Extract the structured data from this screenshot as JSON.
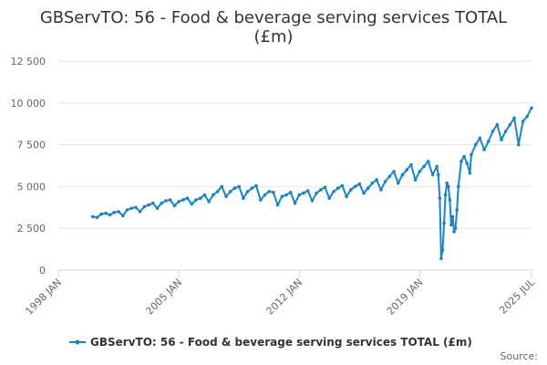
{
  "chart_data": {
    "type": "line",
    "title_line1": "GBServTO: 56 - Food & beverage serving services TOTAL",
    "title_line2": "(£m)",
    "xlabel": "",
    "ylabel": "",
    "ylim": [
      0,
      12500
    ],
    "y_ticks": [
      {
        "value": 0,
        "label": "0"
      },
      {
        "value": 2500,
        "label": "2 500"
      },
      {
        "value": 5000,
        "label": "5 000"
      },
      {
        "value": 7500,
        "label": "7 500"
      },
      {
        "value": 10000,
        "label": "10 000"
      },
      {
        "value": 12500,
        "label": "12 500"
      }
    ],
    "x_range": [
      1998.0,
      2025.5
    ],
    "x_ticks": [
      {
        "value": 1998.0,
        "label": "1998 JAN"
      },
      {
        "value": 2005.0,
        "label": "2005 JAN"
      },
      {
        "value": 2012.0,
        "label": "2012 JAN"
      },
      {
        "value": 2019.0,
        "label": "2019 JAN"
      },
      {
        "value": 2025.5,
        "label": "2025 JUL"
      }
    ],
    "grid": true,
    "series": [
      {
        "name": "GBServTO: 56 - Food & beverage serving services TOTAL (£m)",
        "color": "#1a84c6",
        "points": [
          [
            2000.0,
            3200
          ],
          [
            2000.25,
            3150
          ],
          [
            2000.5,
            3350
          ],
          [
            2000.75,
            3400
          ],
          [
            2001.0,
            3300
          ],
          [
            2001.25,
            3450
          ],
          [
            2001.5,
            3500
          ],
          [
            2001.75,
            3250
          ],
          [
            2002.0,
            3600
          ],
          [
            2002.25,
            3700
          ],
          [
            2002.5,
            3750
          ],
          [
            2002.75,
            3500
          ],
          [
            2003.0,
            3800
          ],
          [
            2003.25,
            3900
          ],
          [
            2003.5,
            4000
          ],
          [
            2003.75,
            3700
          ],
          [
            2004.0,
            4000
          ],
          [
            2004.25,
            4150
          ],
          [
            2004.5,
            4200
          ],
          [
            2004.75,
            3850
          ],
          [
            2005.0,
            4100
          ],
          [
            2005.25,
            4200
          ],
          [
            2005.5,
            4300
          ],
          [
            2005.75,
            3950
          ],
          [
            2006.0,
            4200
          ],
          [
            2006.25,
            4300
          ],
          [
            2006.5,
            4500
          ],
          [
            2006.75,
            4100
          ],
          [
            2007.0,
            4500
          ],
          [
            2007.25,
            4700
          ],
          [
            2007.5,
            5000
          ],
          [
            2007.75,
            4400
          ],
          [
            2008.0,
            4700
          ],
          [
            2008.25,
            4900
          ],
          [
            2008.5,
            5000
          ],
          [
            2008.75,
            4300
          ],
          [
            2009.0,
            4700
          ],
          [
            2009.25,
            4900
          ],
          [
            2009.5,
            5050
          ],
          [
            2009.75,
            4200
          ],
          [
            2010.0,
            4500
          ],
          [
            2010.25,
            4700
          ],
          [
            2010.5,
            4650
          ],
          [
            2010.75,
            3900
          ],
          [
            2011.0,
            4400
          ],
          [
            2011.25,
            4500
          ],
          [
            2011.5,
            4650
          ],
          [
            2011.75,
            4000
          ],
          [
            2012.0,
            4500
          ],
          [
            2012.25,
            4600
          ],
          [
            2012.5,
            4750
          ],
          [
            2012.75,
            4150
          ],
          [
            2013.0,
            4600
          ],
          [
            2013.25,
            4800
          ],
          [
            2013.5,
            4950
          ],
          [
            2013.75,
            4300
          ],
          [
            2014.0,
            4700
          ],
          [
            2014.25,
            4900
          ],
          [
            2014.5,
            5050
          ],
          [
            2014.75,
            4400
          ],
          [
            2015.0,
            4800
          ],
          [
            2015.25,
            5000
          ],
          [
            2015.5,
            5150
          ],
          [
            2015.75,
            4600
          ],
          [
            2016.0,
            4900
          ],
          [
            2016.25,
            5200
          ],
          [
            2016.5,
            5400
          ],
          [
            2016.75,
            4800
          ],
          [
            2017.0,
            5300
          ],
          [
            2017.25,
            5600
          ],
          [
            2017.5,
            5900
          ],
          [
            2017.75,
            5200
          ],
          [
            2018.0,
            5700
          ],
          [
            2018.25,
            6000
          ],
          [
            2018.5,
            6300
          ],
          [
            2018.75,
            5400
          ],
          [
            2019.0,
            5900
          ],
          [
            2019.25,
            6200
          ],
          [
            2019.5,
            6500
          ],
          [
            2019.75,
            5700
          ],
          [
            2020.0,
            6200
          ],
          [
            2020.083,
            5700
          ],
          [
            2020.167,
            4300
          ],
          [
            2020.25,
            700
          ],
          [
            2020.333,
            1200
          ],
          [
            2020.417,
            2800
          ],
          [
            2020.5,
            4500
          ],
          [
            2020.583,
            5200
          ],
          [
            2020.667,
            5000
          ],
          [
            2020.75,
            4200
          ],
          [
            2020.833,
            2700
          ],
          [
            2020.917,
            3200
          ],
          [
            2021.0,
            2300
          ],
          [
            2021.083,
            2500
          ],
          [
            2021.167,
            3600
          ],
          [
            2021.25,
            5000
          ],
          [
            2021.417,
            6500
          ],
          [
            2021.583,
            6800
          ],
          [
            2021.75,
            6400
          ],
          [
            2021.917,
            5800
          ],
          [
            2022.0,
            6900
          ],
          [
            2022.25,
            7500
          ],
          [
            2022.5,
            7900
          ],
          [
            2022.75,
            7200
          ],
          [
            2023.0,
            7700
          ],
          [
            2023.25,
            8300
          ],
          [
            2023.5,
            8700
          ],
          [
            2023.75,
            7800
          ],
          [
            2024.0,
            8300
          ],
          [
            2024.25,
            8700
          ],
          [
            2024.5,
            9100
          ],
          [
            2024.75,
            7500
          ],
          [
            2025.0,
            8900
          ],
          [
            2025.25,
            9200
          ],
          [
            2025.5,
            9700
          ]
        ]
      }
    ]
  },
  "legend": {
    "label": "GBServTO: 56 - Food & beverage serving services TOTAL (£m)"
  },
  "source_label": "Source:"
}
